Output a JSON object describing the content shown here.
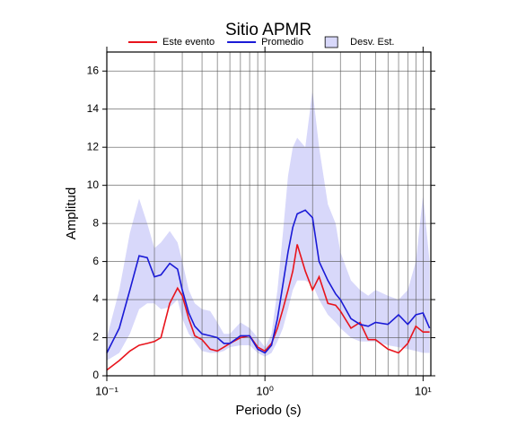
{
  "chart_data": {
    "type": "line",
    "title": "Sitio APMR",
    "x_label": "Periodo (s)",
    "y_label": "Amplitud",
    "x_scale": "log",
    "grid": true,
    "legend": "top",
    "xlim": [
      0.1,
      11.2
    ],
    "ylim": [
      0,
      17
    ],
    "xticks": [
      {
        "value": 0.1,
        "label": "10⁻¹"
      },
      {
        "value": 1,
        "label": "10⁰"
      },
      {
        "value": 10,
        "label": "10¹"
      }
    ],
    "yticks": [
      0,
      2,
      4,
      6,
      8,
      10,
      12,
      14,
      16
    ],
    "x": [
      0.1,
      0.12,
      0.14,
      0.16,
      0.18,
      0.2,
      0.22,
      0.25,
      0.28,
      0.3,
      0.33,
      0.36,
      0.4,
      0.45,
      0.5,
      0.55,
      0.6,
      0.7,
      0.8,
      0.9,
      1.0,
      1.1,
      1.2,
      1.3,
      1.4,
      1.5,
      1.6,
      1.8,
      2.0,
      2.2,
      2.5,
      2.8,
      3.0,
      3.5,
      4,
      4.5,
      5,
      6,
      7,
      8,
      9,
      10,
      11
    ],
    "series": [
      {
        "name": "Este evento",
        "color": "#e8141c",
        "values": [
          0.3,
          0.8,
          1.3,
          1.6,
          1.7,
          1.8,
          2.0,
          3.8,
          4.6,
          4.2,
          3.0,
          2.1,
          1.9,
          1.4,
          1.3,
          1.5,
          1.7,
          2.0,
          2.1,
          1.5,
          1.3,
          1.7,
          2.5,
          3.5,
          4.5,
          5.5,
          6.9,
          5.5,
          4.5,
          5.2,
          3.8,
          3.7,
          3.4,
          2.5,
          2.8,
          1.9,
          1.9,
          1.4,
          1.2,
          1.7,
          2.6,
          2.3,
          2.3
        ]
      },
      {
        "name": "Promedio",
        "color": "#1a1ad6",
        "values": [
          1.2,
          2.5,
          4.5,
          6.3,
          6.2,
          5.2,
          5.3,
          5.9,
          5.6,
          4.5,
          3.3,
          2.6,
          2.2,
          2.1,
          2.0,
          1.7,
          1.7,
          2.1,
          2.1,
          1.4,
          1.2,
          1.6,
          3.0,
          4.8,
          6.5,
          7.8,
          8.5,
          8.7,
          8.3,
          6.0,
          5.0,
          4.3,
          4.0,
          3.0,
          2.7,
          2.6,
          2.8,
          2.7,
          3.2,
          2.7,
          3.2,
          3.3,
          2.5
        ]
      },
      {
        "name": "Desv. Est.",
        "color": "#d8d8fa",
        "type": "band",
        "upper": [
          2.0,
          4.5,
          7.5,
          9.3,
          8.0,
          6.7,
          7.0,
          7.6,
          7.0,
          6.0,
          4.5,
          3.8,
          3.5,
          3.4,
          2.8,
          2.2,
          2.2,
          2.8,
          2.5,
          2.0,
          1.5,
          2.2,
          4.5,
          7.5,
          10.5,
          12.0,
          12.5,
          12.0,
          15.0,
          12.0,
          9.0,
          8.0,
          6.5,
          5.0,
          4.5,
          4.2,
          4.5,
          4.2,
          4.0,
          4.5,
          6.0,
          9.5,
          6.0
        ],
        "lower": [
          0.8,
          1.2,
          2.2,
          3.5,
          3.8,
          3.8,
          3.5,
          3.6,
          4.0,
          3.0,
          2.2,
          1.8,
          1.3,
          1.2,
          1.2,
          1.3,
          1.5,
          1.6,
          1.6,
          1.2,
          1.0,
          1.2,
          1.8,
          2.5,
          3.5,
          4.5,
          5.0,
          5.0,
          4.8,
          4.0,
          3.2,
          2.8,
          2.5,
          2.0,
          1.8,
          1.8,
          1.8,
          1.6,
          1.5,
          1.4,
          1.3,
          1.2,
          1.2
        ]
      }
    ]
  }
}
